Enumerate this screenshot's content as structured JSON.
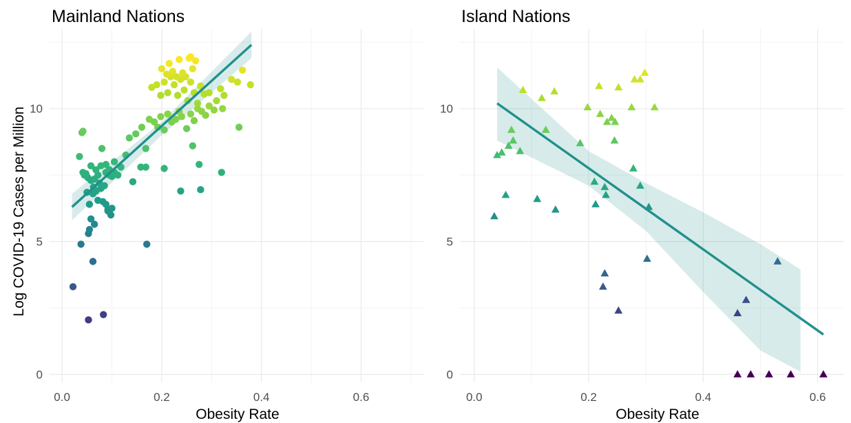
{
  "chart_data": [
    {
      "type": "scatter",
      "title": "Mainland Nations",
      "xlabel": "Obesity Rate",
      "ylabel": "Log COVID-19 Cases per Million",
      "xlim": [
        -0.025,
        0.725
      ],
      "ylim": [
        -0.3,
        13.0
      ],
      "xticks": [
        "0.0",
        "0.2",
        "0.4",
        "0.6"
      ],
      "xtick_values": [
        0.0,
        0.2,
        0.4,
        0.6
      ],
      "yticks": [
        "0",
        "5",
        "10"
      ],
      "ytick_values": [
        0,
        5,
        10
      ],
      "marker": "circle",
      "color_scale": "viridis",
      "grid": true,
      "trend": {
        "x": [
          0.02,
          0.38
        ],
        "y": [
          6.3,
          12.4
        ],
        "band": [
          [
            0.02,
            5.8,
            6.8
          ],
          [
            0.2,
            9.0,
            9.5
          ],
          [
            0.38,
            11.9,
            12.9
          ]
        ]
      },
      "points": [
        [
          0.022,
          3.3
        ],
        [
          0.053,
          2.05
        ],
        [
          0.083,
          2.25
        ],
        [
          0.062,
          4.25
        ],
        [
          0.038,
          4.9
        ],
        [
          0.17,
          4.9
        ],
        [
          0.053,
          5.3
        ],
        [
          0.055,
          5.45
        ],
        [
          0.065,
          5.65
        ],
        [
          0.058,
          5.85
        ],
        [
          0.098,
          6.0
        ],
        [
          0.092,
          6.15
        ],
        [
          0.055,
          6.4
        ],
        [
          0.072,
          6.55
        ],
        [
          0.082,
          6.5
        ],
        [
          0.088,
          6.4
        ],
        [
          0.092,
          6.2
        ],
        [
          0.1,
          6.25
        ],
        [
          0.062,
          6.8
        ],
        [
          0.05,
          6.85
        ],
        [
          0.068,
          6.9
        ],
        [
          0.078,
          7.0
        ],
        [
          0.063,
          7.05
        ],
        [
          0.075,
          7.2
        ],
        [
          0.085,
          7.1
        ],
        [
          0.045,
          7.5
        ],
        [
          0.052,
          7.4
        ],
        [
          0.058,
          7.3
        ],
        [
          0.065,
          7.35
        ],
        [
          0.072,
          7.5
        ],
        [
          0.088,
          7.6
        ],
        [
          0.095,
          7.5
        ],
        [
          0.1,
          7.45
        ],
        [
          0.105,
          7.6
        ],
        [
          0.112,
          7.5
        ],
        [
          0.042,
          7.6
        ],
        [
          0.048,
          7.55
        ],
        [
          0.058,
          7.85
        ],
        [
          0.068,
          7.7
        ],
        [
          0.078,
          7.85
        ],
        [
          0.088,
          7.9
        ],
        [
          0.095,
          7.7
        ],
        [
          0.105,
          8.0
        ],
        [
          0.118,
          7.8
        ],
        [
          0.035,
          8.2
        ],
        [
          0.08,
          8.5
        ],
        [
          0.128,
          8.25
        ],
        [
          0.142,
          7.25
        ],
        [
          0.158,
          7.8
        ],
        [
          0.168,
          7.8
        ],
        [
          0.205,
          7.75
        ],
        [
          0.238,
          6.9
        ],
        [
          0.278,
          6.95
        ],
        [
          0.275,
          7.9
        ],
        [
          0.32,
          7.6
        ],
        [
          0.262,
          8.6
        ],
        [
          0.04,
          9.1
        ],
        [
          0.042,
          9.15
        ],
        [
          0.135,
          8.9
        ],
        [
          0.148,
          9.05
        ],
        [
          0.16,
          9.3
        ],
        [
          0.168,
          8.5
        ],
        [
          0.175,
          9.6
        ],
        [
          0.185,
          9.5
        ],
        [
          0.192,
          9.3
        ],
        [
          0.198,
          9.7
        ],
        [
          0.205,
          9.2
        ],
        [
          0.212,
          9.8
        ],
        [
          0.22,
          9.5
        ],
        [
          0.228,
          9.6
        ],
        [
          0.235,
          9.9
        ],
        [
          0.24,
          9.7
        ],
        [
          0.25,
          9.25
        ],
        [
          0.258,
          9.8
        ],
        [
          0.265,
          9.55
        ],
        [
          0.272,
          10.0
        ],
        [
          0.28,
          9.9
        ],
        [
          0.288,
          9.75
        ],
        [
          0.295,
          10.1
        ],
        [
          0.305,
          9.95
        ],
        [
          0.322,
          10.0
        ],
        [
          0.355,
          9.3
        ],
        [
          0.18,
          10.8
        ],
        [
          0.19,
          10.9
        ],
        [
          0.198,
          10.5
        ],
        [
          0.205,
          11.0
        ],
        [
          0.212,
          10.6
        ],
        [
          0.218,
          11.2
        ],
        [
          0.225,
          10.9
        ],
        [
          0.232,
          10.5
        ],
        [
          0.238,
          11.1
        ],
        [
          0.245,
          10.7
        ],
        [
          0.252,
          10.3
        ],
        [
          0.258,
          11.0
        ],
        [
          0.265,
          10.6
        ],
        [
          0.272,
          10.2
        ],
        [
          0.278,
          10.85
        ],
        [
          0.285,
          10.55
        ],
        [
          0.295,
          10.6
        ],
        [
          0.31,
          10.3
        ],
        [
          0.318,
          10.75
        ],
        [
          0.325,
          10.5
        ],
        [
          0.34,
          11.1
        ],
        [
          0.352,
          11.0
        ],
        [
          0.362,
          11.45
        ],
        [
          0.378,
          10.9
        ],
        [
          0.2,
          11.5
        ],
        [
          0.21,
          11.3
        ],
        [
          0.222,
          11.4
        ],
        [
          0.23,
          11.2
        ],
        [
          0.235,
          11.85
        ],
        [
          0.248,
          11.2
        ],
        [
          0.255,
          11.9
        ],
        [
          0.258,
          11.95
        ],
        [
          0.262,
          11.5
        ],
        [
          0.268,
          11.8
        ],
        [
          0.215,
          11.7
        ],
        [
          0.242,
          11.35
        ]
      ]
    },
    {
      "type": "scatter",
      "title": "Island Nations",
      "xlabel": "Obesity Rate",
      "ylabel": "",
      "xlim": [
        -0.025,
        0.645
      ],
      "ylim": [
        -0.3,
        13.0
      ],
      "xticks": [
        "0.0",
        "0.2",
        "0.4",
        "0.6"
      ],
      "xtick_values": [
        0.0,
        0.2,
        0.4,
        0.6
      ],
      "yticks": [
        "0",
        "5",
        "10"
      ],
      "ytick_values": [
        0,
        5,
        10
      ],
      "marker": "triangle",
      "color_scale": "viridis",
      "grid": true,
      "trend": {
        "x": [
          0.04,
          0.61
        ],
        "y": [
          10.2,
          1.5
        ],
        "band": [
          [
            0.04,
            8.8,
            11.55
          ],
          [
            0.2,
            7.1,
            8.4
          ],
          [
            0.3,
            5.4,
            7.2
          ],
          [
            0.4,
            3.1,
            6.1
          ],
          [
            0.5,
            0.9,
            4.9
          ],
          [
            0.57,
            0.1,
            3.95
          ]
        ]
      },
      "points": [
        [
          0.035,
          5.95
        ],
        [
          0.055,
          6.75
        ],
        [
          0.11,
          6.6
        ],
        [
          0.142,
          6.2
        ],
        [
          0.04,
          8.25
        ],
        [
          0.048,
          8.35
        ],
        [
          0.06,
          8.6
        ],
        [
          0.068,
          8.8
        ],
        [
          0.08,
          8.4
        ],
        [
          0.065,
          9.2
        ],
        [
          0.125,
          9.2
        ],
        [
          0.085,
          10.7
        ],
        [
          0.118,
          10.4
        ],
        [
          0.14,
          10.65
        ],
        [
          0.185,
          8.7
        ],
        [
          0.198,
          10.05
        ],
        [
          0.218,
          10.85
        ],
        [
          0.22,
          9.8
        ],
        [
          0.21,
          7.25
        ],
        [
          0.212,
          6.4
        ],
        [
          0.228,
          7.05
        ],
        [
          0.23,
          6.75
        ],
        [
          0.232,
          9.5
        ],
        [
          0.24,
          9.65
        ],
        [
          0.246,
          9.5
        ],
        [
          0.245,
          8.8
        ],
        [
          0.252,
          10.8
        ],
        [
          0.275,
          10.05
        ],
        [
          0.28,
          11.1
        ],
        [
          0.278,
          7.75
        ],
        [
          0.29,
          7.1
        ],
        [
          0.29,
          11.1
        ],
        [
          0.298,
          11.35
        ],
        [
          0.305,
          6.3
        ],
        [
          0.315,
          10.05
        ],
        [
          0.228,
          3.8
        ],
        [
          0.225,
          3.3
        ],
        [
          0.252,
          2.4
        ],
        [
          0.302,
          4.35
        ],
        [
          0.46,
          2.3
        ],
        [
          0.475,
          2.8
        ],
        [
          0.53,
          4.25
        ],
        [
          0.46,
          0.0
        ],
        [
          0.483,
          0.0
        ],
        [
          0.515,
          0.0
        ],
        [
          0.553,
          0.0
        ],
        [
          0.61,
          0.0
        ]
      ]
    }
  ]
}
